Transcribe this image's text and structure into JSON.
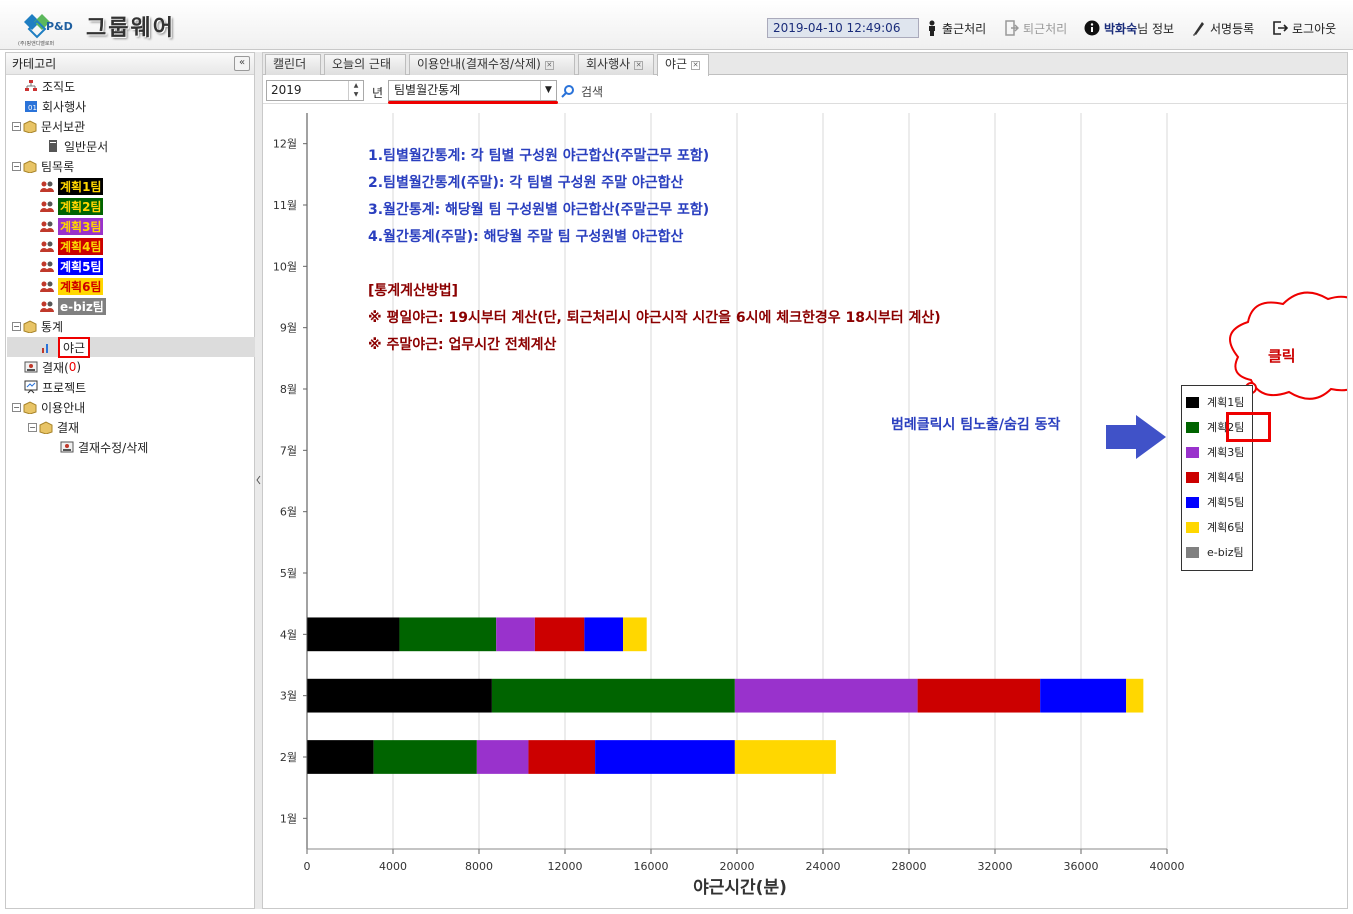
{
  "header": {
    "logo_text": "P&D",
    "logo_sub": "(주)핑앤디벨로퍼",
    "app_title": "그룹웨어",
    "datetime": "2019-04-10 12:49:06",
    "buttons": {
      "check_in": "출근처리",
      "check_out": "퇴근처리",
      "user_name": "박화숙",
      "user_suffix": "님 정보",
      "signature": "서명등록",
      "logout": "로그아웃"
    }
  },
  "sidebar": {
    "title": "카테고리",
    "collapse": "«",
    "nodes": {
      "org_chart": "조직도",
      "company_events": "회사행사",
      "doc_archive": "문서보관",
      "general_docs": "일반문서",
      "team_list": "팀목록",
      "team1": "계획1팀",
      "team2": "계획2팀",
      "team3": "계획3팀",
      "team4": "계획4팀",
      "team5": "계획5팀",
      "team6": "계획6팀",
      "ebiz": "e-biz팀",
      "stats": "통계",
      "overtime": "야근",
      "approval_prefix": "결재(",
      "approval_count": "0",
      "approval_suffix": ")",
      "project": "프로젝트",
      "guide": "이용안내",
      "guide_approval": "결재",
      "guide_approval_edit": "결재수정/삭제"
    }
  },
  "tabs": {
    "calendar": "캘린더",
    "attendance": "오늘의 근태",
    "guide": "이용안내(결재수정/삭제)",
    "events": "회사행사",
    "overtime": "야근"
  },
  "toolbar": {
    "year": "2019",
    "year_unit": "년",
    "mode": "팀별월간통계",
    "search": "검색"
  },
  "annotations": {
    "line1": "1.팀별월간통계: 각 팀별 구성원 야근합산(주말근무 포함)",
    "line2": "2.팀별월간통계(주말): 각 팀별 구성원 주말 야근합산",
    "line3": "3.월간통계: 해당월 팀 구성원별 야근합산(주말근무 포함)",
    "line4": "4.월간통계(주말): 해당월 주말 팀 구성원별 야근합산",
    "method_title": "[통계계산방법]",
    "method1": "※ 평일야근: 19시부터 계산(단, 퇴근처리시 야근시작 시간을 6시에 체크한경우 18시부터 계산)",
    "method2": "※ 주말야근: 업무시간 전체계산",
    "legend_hint": "범례클릭시 팀노출/숨김 동작",
    "click_bubble": "클릭"
  },
  "colors": {
    "team1": "#000000",
    "team2": "#006400",
    "team3": "#9932CC",
    "team4": "#CC0000",
    "team5": "#0000FF",
    "team6": "#FFD700",
    "ebiz": "#808080",
    "annotation_blue": "#2a3fbf",
    "annotation_red": "#8b0000",
    "highlight": "#e00000"
  },
  "chart_data": {
    "type": "bar",
    "orientation": "horizontal",
    "stacked": true,
    "categories": [
      "1월",
      "2월",
      "3월",
      "4월",
      "5월",
      "6월",
      "7월",
      "8월",
      "9월",
      "10월",
      "11월",
      "12월"
    ],
    "series": [
      {
        "name": "계획1팀",
        "values": [
          0,
          3100,
          8600,
          4300,
          0,
          0,
          0,
          0,
          0,
          0,
          0,
          0
        ]
      },
      {
        "name": "계획2팀",
        "values": [
          0,
          4800,
          11300,
          4500,
          0,
          0,
          0,
          0,
          0,
          0,
          0,
          0
        ]
      },
      {
        "name": "계획3팀",
        "values": [
          0,
          2400,
          8500,
          1800,
          0,
          0,
          0,
          0,
          0,
          0,
          0,
          0
        ]
      },
      {
        "name": "계획4팀",
        "values": [
          0,
          3100,
          5700,
          2300,
          0,
          0,
          0,
          0,
          0,
          0,
          0,
          0
        ]
      },
      {
        "name": "계획5팀",
        "values": [
          0,
          6500,
          4000,
          1800,
          0,
          0,
          0,
          0,
          0,
          0,
          0,
          0
        ]
      },
      {
        "name": "계획6팀",
        "values": [
          0,
          4700,
          800,
          1100,
          0,
          0,
          0,
          0,
          0,
          0,
          0,
          0
        ]
      },
      {
        "name": "e-biz팀",
        "values": [
          0,
          0,
          0,
          0,
          0,
          0,
          0,
          0,
          0,
          0,
          0,
          0
        ]
      }
    ],
    "xlabel": "야근시간(분)",
    "ylabel": "",
    "xlim": [
      0,
      40000
    ],
    "xticks": [
      "0",
      "4000",
      "8000",
      "12000",
      "16000",
      "20000",
      "24000",
      "28000",
      "32000",
      "36000",
      "40000"
    ],
    "grid": true,
    "legend_position": "right"
  }
}
